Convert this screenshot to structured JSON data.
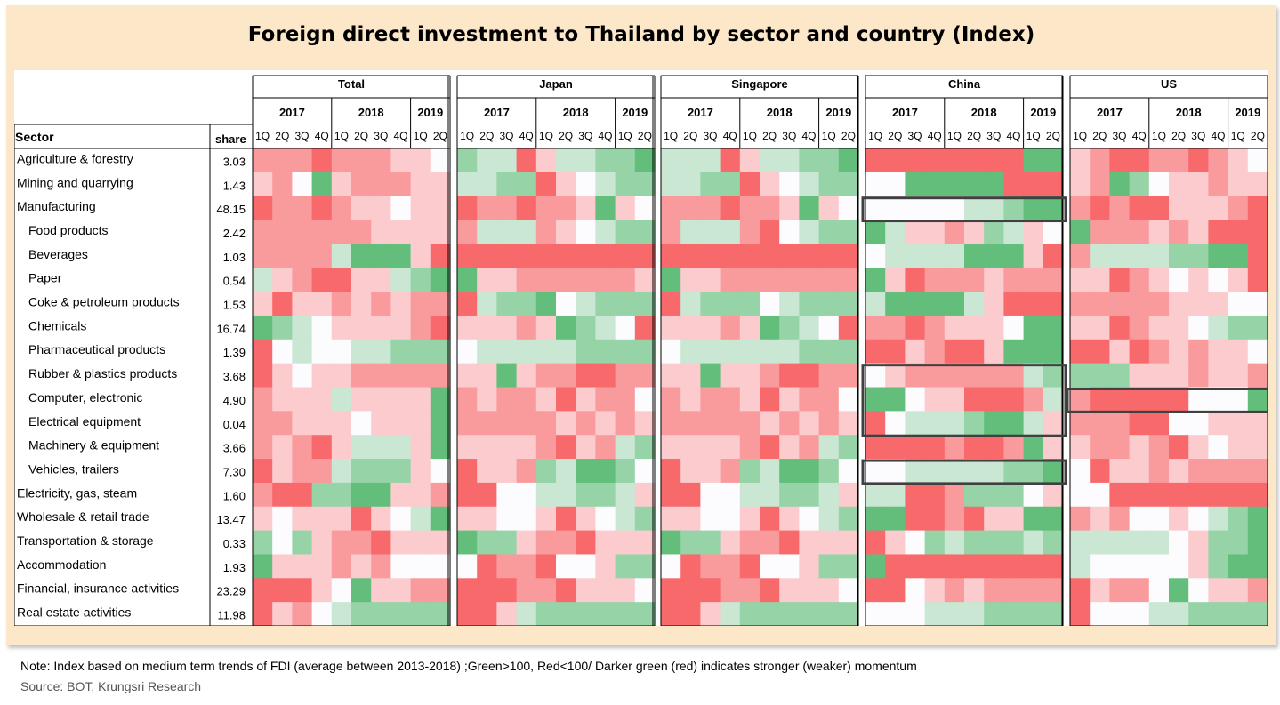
{
  "title": "Foreign direct investment to Thailand by sector and country (Index)",
  "note": "Note: Index based on medium term trends of FDI (average between 2013-2018) ;Green>100, Red<100/ Darker green (red) indicates stronger (weaker) momentum",
  "source": "Source: BOT, Krungsri Research",
  "colors": {
    "red": "#f8696b",
    "white": "#fcfcff",
    "green": "#63be7b",
    "panel": "#fde7c9",
    "highlight": "#404040"
  },
  "chart_data": {
    "type": "heatmap",
    "title": "Foreign direct investment to Thailand by sector and country (Index)",
    "row_header": "Sector",
    "share_header": "share",
    "countries": [
      "Total",
      "Japan",
      "Singapore",
      "China",
      "US"
    ],
    "years": [
      {
        "label": "2017",
        "quarters": 4
      },
      {
        "label": "2018",
        "quarters": 4
      },
      {
        "label": "2019",
        "quarters": 2
      }
    ],
    "quarter_labels": [
      "1Q",
      "2Q",
      "3Q",
      "4Q",
      "1Q",
      "2Q",
      "3Q",
      "4Q",
      "1Q",
      "2Q"
    ],
    "sectors": [
      {
        "name": "Agriculture & forestry",
        "share": "3.03",
        "indent": 0
      },
      {
        "name": "Mining and quarrying",
        "share": "1.43",
        "indent": 0
      },
      {
        "name": "Manufacturing",
        "share": "48.15",
        "indent": 0
      },
      {
        "name": "Food products",
        "share": "2.42",
        "indent": 1
      },
      {
        "name": "Beverages",
        "share": "1.03",
        "indent": 1
      },
      {
        "name": "Paper",
        "share": "0.54",
        "indent": 1
      },
      {
        "name": "Coke & petroleum products",
        "share": "1.53",
        "indent": 1
      },
      {
        "name": "Chemicals",
        "share": "16.74",
        "indent": 1
      },
      {
        "name": "Pharmaceutical products",
        "share": "1.39",
        "indent": 1
      },
      {
        "name": "Rubber & plastics products",
        "share": "3.68",
        "indent": 1
      },
      {
        "name": "Computer, electronic",
        "share": "4.90",
        "indent": 1
      },
      {
        "name": "Electrical equipment",
        "share": "0.04",
        "indent": 1
      },
      {
        "name": "Machinery & equipment",
        "share": "3.66",
        "indent": 1
      },
      {
        "name": "Vehicles, trailers",
        "share": "7.30",
        "indent": 1
      },
      {
        "name": "Electricity, gas, steam",
        "share": "1.60",
        "indent": 0
      },
      {
        "name": "Wholesale & retail trade",
        "share": "13.47",
        "indent": 0
      },
      {
        "name": "Transportation & storage",
        "share": "0.33",
        "indent": 0
      },
      {
        "name": "Accommodation",
        "share": "1.93",
        "indent": 0
      },
      {
        "name": "Financial, insurance activities",
        "share": "23.29",
        "indent": 0
      },
      {
        "name": "Real estate activities",
        "share": "11.98",
        "indent": 0
      }
    ],
    "color_scale": {
      "min": -3,
      "mid": 0,
      "max": 3,
      "low_color": "#f8696b",
      "mid_color": "#fcfcff",
      "high_color": "#63be7b"
    },
    "values": {
      "Total": [
        [
          -2,
          -2,
          -2,
          -3,
          -2,
          -2,
          -2,
          -1,
          -1,
          0
        ],
        [
          -1,
          -2,
          0,
          3,
          -1,
          -2,
          -2,
          -2,
          -1,
          -1
        ],
        [
          -3,
          -2,
          -2,
          -3,
          -2,
          -1,
          -1,
          0,
          -1,
          -1
        ],
        [
          -2,
          -2,
          -2,
          -2,
          -2,
          -2,
          -1,
          -1,
          -1,
          -1
        ],
        [
          -2,
          -2,
          -2,
          -2,
          1,
          3,
          3,
          3,
          -1,
          -3
        ],
        [
          1,
          -1,
          -2,
          -3,
          -3,
          -1,
          -1,
          1,
          2,
          3
        ],
        [
          -1,
          -3,
          -1,
          -1,
          -2,
          -1,
          -2,
          -1,
          -2,
          -2
        ],
        [
          3,
          2,
          1,
          0,
          -1,
          -1,
          -1,
          -1,
          -2,
          -3
        ],
        [
          -3,
          0,
          1,
          0,
          0,
          1,
          1,
          2,
          2,
          2
        ],
        [
          -3,
          -1,
          0,
          -1,
          -1,
          -2,
          -2,
          -2,
          -2,
          -2
        ],
        [
          -2,
          -1,
          -1,
          -1,
          1,
          -1,
          -1,
          -1,
          -1,
          3
        ],
        [
          -2,
          -2,
          -1,
          -1,
          -1,
          0,
          -1,
          -1,
          -1,
          3
        ],
        [
          -2,
          -1,
          -2,
          -3,
          -1,
          1,
          1,
          1,
          -1,
          3
        ],
        [
          -3,
          -1,
          -2,
          -2,
          1,
          2,
          2,
          2,
          -1,
          0
        ],
        [
          -2,
          -3,
          -3,
          2,
          2,
          3,
          3,
          -1,
          -1,
          -2
        ],
        [
          -1,
          0,
          -1,
          -1,
          -1,
          -3,
          -1,
          0,
          1,
          3
        ],
        [
          2,
          0,
          2,
          -1,
          -2,
          -2,
          -3,
          -1,
          -1,
          -1
        ],
        [
          3,
          -1,
          -1,
          -1,
          -2,
          -1,
          -2,
          0,
          0,
          0
        ],
        [
          -3,
          -3,
          -3,
          -1,
          0,
          3,
          -1,
          -1,
          -2,
          -2
        ],
        [
          -3,
          -1,
          -2,
          0,
          1,
          2,
          2,
          2,
          2,
          2
        ]
      ],
      "Japan": [
        [
          2,
          1,
          1,
          -3,
          -1,
          1,
          1,
          2,
          2,
          3
        ],
        [
          1,
          1,
          2,
          2,
          -3,
          -1,
          0,
          1,
          2,
          2
        ],
        [
          -3,
          -2,
          -2,
          -3,
          -2,
          -2,
          -1,
          3,
          -1,
          0
        ],
        [
          -2,
          1,
          1,
          1,
          -2,
          -1,
          0,
          1,
          2,
          2
        ],
        [
          -3,
          -3,
          -3,
          -3,
          -3,
          -3,
          -3,
          -3,
          -3,
          -3
        ],
        [
          3,
          -1,
          -1,
          -2,
          -2,
          -2,
          -2,
          -2,
          -2,
          -1
        ],
        [
          -3,
          1,
          2,
          2,
          3,
          0,
          1,
          2,
          2,
          2
        ],
        [
          -1,
          -1,
          -1,
          -2,
          -1,
          3,
          2,
          1,
          0,
          -3
        ],
        [
          0,
          1,
          1,
          1,
          1,
          1,
          2,
          2,
          2,
          2
        ],
        [
          -1,
          -1,
          3,
          -1,
          -2,
          -2,
          -3,
          -3,
          -2,
          -2
        ],
        [
          -2,
          -1,
          -2,
          -2,
          -1,
          -3,
          -1,
          -2,
          -2,
          0
        ],
        [
          -2,
          -2,
          -2,
          -2,
          -2,
          -1,
          -2,
          -1,
          -2,
          -1
        ],
        [
          -1,
          -1,
          -1,
          -1,
          -2,
          -3,
          -1,
          -2,
          1,
          2
        ],
        [
          -3,
          -1,
          -1,
          -2,
          2,
          1,
          3,
          3,
          2,
          0
        ],
        [
          -3,
          -3,
          0,
          0,
          1,
          1,
          2,
          2,
          1,
          -1
        ],
        [
          -1,
          -1,
          0,
          0,
          -1,
          -3,
          -1,
          0,
          1,
          2
        ],
        [
          3,
          2,
          2,
          -1,
          -2,
          -2,
          -3,
          -1,
          -1,
          -1
        ],
        [
          0,
          -3,
          -2,
          -2,
          -3,
          0,
          0,
          -1,
          2,
          2
        ],
        [
          -3,
          -3,
          -3,
          -2,
          -2,
          -3,
          -1,
          -1,
          -1,
          0
        ],
        [
          -3,
          -3,
          -1,
          1,
          2,
          2,
          2,
          2,
          2,
          2
        ]
      ],
      "Singapore": [
        [
          1,
          1,
          1,
          -3,
          -1,
          1,
          1,
          2,
          2,
          3
        ],
        [
          1,
          1,
          2,
          2,
          -3,
          -1,
          0,
          1,
          2,
          2
        ],
        [
          -2,
          -2,
          -2,
          -3,
          -2,
          -2,
          -1,
          3,
          -1,
          0
        ],
        [
          -2,
          1,
          1,
          1,
          -2,
          -3,
          0,
          1,
          2,
          2
        ],
        [
          -3,
          -3,
          -3,
          -3,
          -3,
          -3,
          -3,
          -3,
          -3,
          -3
        ],
        [
          3,
          -1,
          -1,
          -2,
          -2,
          -2,
          -2,
          -2,
          -2,
          -2
        ],
        [
          -3,
          1,
          2,
          2,
          2,
          0,
          1,
          2,
          2,
          2
        ],
        [
          -1,
          -1,
          -1,
          -2,
          -1,
          3,
          2,
          1,
          0,
          -3
        ],
        [
          0,
          1,
          1,
          1,
          1,
          1,
          1,
          2,
          2,
          2
        ],
        [
          -1,
          -1,
          3,
          -1,
          -1,
          -2,
          -3,
          -3,
          -2,
          -2
        ],
        [
          -2,
          -1,
          -2,
          -2,
          -1,
          -3,
          -1,
          -2,
          -2,
          0
        ],
        [
          -2,
          -2,
          -2,
          -2,
          -2,
          -1,
          -2,
          -1,
          -2,
          -1
        ],
        [
          -1,
          -1,
          -1,
          -1,
          -2,
          -3,
          -1,
          -2,
          1,
          2
        ],
        [
          -3,
          -1,
          -1,
          -2,
          2,
          1,
          3,
          3,
          2,
          0
        ],
        [
          -3,
          -3,
          0,
          0,
          1,
          1,
          2,
          2,
          1,
          -1
        ],
        [
          -1,
          -1,
          0,
          0,
          -1,
          -3,
          -1,
          0,
          1,
          2
        ],
        [
          3,
          2,
          2,
          -1,
          -2,
          -2,
          -3,
          -1,
          -1,
          -1
        ],
        [
          0,
          -3,
          -2,
          -2,
          -3,
          0,
          0,
          -1,
          2,
          2
        ],
        [
          -3,
          -3,
          -3,
          -2,
          -2,
          -3,
          -1,
          -1,
          -1,
          0
        ],
        [
          -3,
          -3,
          -1,
          1,
          2,
          2,
          2,
          2,
          2,
          2
        ]
      ],
      "China": [
        [
          -3,
          -3,
          -3,
          -3,
          -3,
          -3,
          -3,
          -3,
          3,
          3
        ],
        [
          0,
          0,
          3,
          3,
          3,
          3,
          3,
          -3,
          -3,
          -3
        ],
        [
          0,
          0,
          0,
          0,
          0,
          1,
          1,
          2,
          3,
          3
        ],
        [
          3,
          1,
          -1,
          -1,
          -2,
          -1,
          2,
          1,
          -1,
          0
        ],
        [
          0,
          1,
          1,
          1,
          1,
          3,
          3,
          3,
          -1,
          -3
        ],
        [
          3,
          -1,
          -3,
          -2,
          -2,
          -2,
          -1,
          -2,
          -2,
          -2
        ],
        [
          1,
          3,
          3,
          3,
          3,
          1,
          -1,
          -3,
          -3,
          -3
        ],
        [
          -2,
          -2,
          -3,
          -2,
          -1,
          -1,
          -1,
          0,
          3,
          3
        ],
        [
          -3,
          -3,
          -1,
          -2,
          -3,
          -3,
          -1,
          3,
          3,
          3
        ],
        [
          0,
          -1,
          -2,
          -2,
          -2,
          -2,
          -2,
          -2,
          1,
          2
        ],
        [
          3,
          3,
          0,
          -1,
          -1,
          -3,
          -3,
          -3,
          -2,
          1
        ],
        [
          -3,
          0,
          1,
          1,
          1,
          2,
          3,
          3,
          1,
          -1
        ],
        [
          -3,
          -3,
          -3,
          -3,
          -2,
          -3,
          -3,
          -2,
          3,
          -1
        ],
        [
          0,
          0,
          1,
          1,
          1,
          1,
          1,
          2,
          2,
          3
        ],
        [
          1,
          1,
          -3,
          -3,
          -2,
          2,
          2,
          2,
          0,
          -1
        ],
        [
          3,
          3,
          -3,
          -3,
          -2,
          -3,
          -1,
          -1,
          3,
          3
        ],
        [
          -3,
          -1,
          0,
          2,
          1,
          2,
          2,
          2,
          1,
          2
        ],
        [
          3,
          -3,
          -3,
          -3,
          -3,
          -3,
          -3,
          -3,
          -3,
          -3
        ],
        [
          -3,
          -3,
          0,
          -1,
          -2,
          -1,
          -2,
          -2,
          -2,
          -2
        ],
        [
          0,
          0,
          0,
          1,
          1,
          1,
          2,
          2,
          2,
          2
        ]
      ],
      "US": [
        [
          -1,
          -2,
          -3,
          -3,
          -2,
          -2,
          -3,
          -2,
          -1,
          0
        ],
        [
          -1,
          -2,
          3,
          2,
          0,
          -1,
          -1,
          -2,
          -1,
          -1
        ],
        [
          -2,
          -3,
          -2,
          -3,
          -3,
          -1,
          -1,
          -1,
          -2,
          -3
        ],
        [
          3,
          -2,
          -2,
          -2,
          -1,
          -2,
          -1,
          -3,
          -3,
          -3
        ],
        [
          -2,
          1,
          1,
          1,
          1,
          2,
          2,
          3,
          3,
          -3
        ],
        [
          -1,
          -1,
          -3,
          -2,
          -1,
          0,
          -1,
          0,
          -1,
          -3
        ],
        [
          -2,
          -2,
          -2,
          -2,
          -2,
          -1,
          -1,
          -1,
          0,
          0
        ],
        [
          -1,
          -1,
          -3,
          -2,
          -1,
          -1,
          0,
          1,
          2,
          2
        ],
        [
          -3,
          -3,
          -1,
          -3,
          -2,
          -1,
          -2,
          -1,
          -1,
          0
        ],
        [
          2,
          2,
          2,
          -1,
          -1,
          -1,
          -2,
          -1,
          -1,
          -2
        ],
        [
          -2,
          -3,
          -3,
          -3,
          -3,
          -3,
          0,
          0,
          0,
          3
        ],
        [
          -2,
          -2,
          -2,
          -3,
          -3,
          0,
          0,
          -1,
          -1,
          -1
        ],
        [
          -1,
          -2,
          -2,
          -1,
          -2,
          -3,
          -1,
          0,
          -1,
          -1
        ],
        [
          0,
          -3,
          -1,
          -1,
          -2,
          -1,
          -2,
          -2,
          -2,
          -2
        ],
        [
          0,
          0,
          -3,
          -3,
          -3,
          -3,
          -3,
          -3,
          -3,
          -3
        ],
        [
          -2,
          -1,
          -2,
          0,
          0,
          -1,
          0,
          1,
          2,
          3
        ],
        [
          1,
          1,
          1,
          1,
          1,
          0,
          -1,
          2,
          2,
          3
        ],
        [
          1,
          0,
          0,
          0,
          0,
          0,
          -1,
          2,
          3,
          3
        ],
        [
          -3,
          -1,
          -2,
          -2,
          0,
          3,
          0,
          -1,
          -1,
          -2
        ],
        [
          -3,
          0,
          0,
          0,
          1,
          1,
          2,
          2,
          2,
          2
        ]
      ]
    },
    "highlights": [
      {
        "country": "China",
        "row_start": 2,
        "row_end": 2
      },
      {
        "country": "China",
        "row_start": 9,
        "row_end": 11
      },
      {
        "country": "China",
        "row_start": 13,
        "row_end": 13
      },
      {
        "country": "US",
        "row_start": 10,
        "row_end": 10
      }
    ]
  }
}
